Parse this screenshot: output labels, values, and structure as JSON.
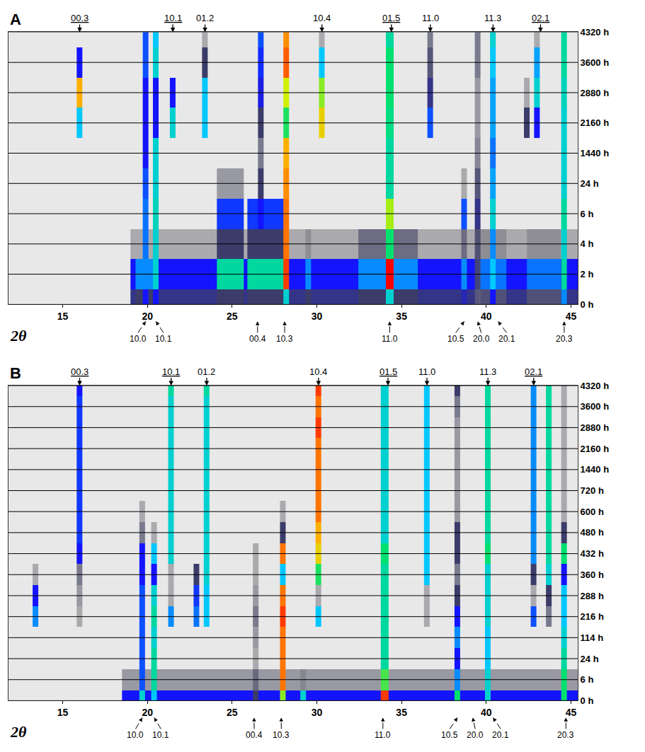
{
  "chart_data": [
    {
      "type": "heatmap",
      "title": "A",
      "x_label": "2θ",
      "xlim": [
        11.8,
        45.4
      ],
      "xticks": [
        15,
        20,
        25,
        30,
        35,
        40,
        45
      ],
      "categories": [
        "0 h",
        "2 h",
        "4 h",
        "6 h",
        "24 h",
        "1440 h",
        "2160 h",
        "2880 h",
        "3600 h",
        "4320 h"
      ],
      "zlim": [
        0,
        1
      ],
      "grid": true,
      "peaks": [
        {
          "x": 32.5,
          "width": 27,
          "intensity": [
            0.22,
            0.3,
            0.1,
            0,
            0,
            0,
            0,
            0,
            0,
            0
          ]
        },
        {
          "x": 19.9,
          "width": 1.2,
          "intensity": [
            0.2,
            0.4,
            0,
            0,
            0,
            0,
            0,
            0,
            0,
            0
          ]
        },
        {
          "x": 24.9,
          "width": 1.6,
          "intensity": [
            0.2,
            0.55,
            0.2,
            0.33,
            0.12,
            0,
            0,
            0,
            0,
            0
          ]
        },
        {
          "x": 27.0,
          "width": 2.2,
          "intensity": [
            0.2,
            0.55,
            0.2,
            0.33,
            0,
            0,
            0,
            0,
            0,
            0
          ]
        },
        {
          "x": 34.2,
          "width": 3.5,
          "intensity": [
            0.2,
            0.4,
            0.15,
            0,
            0,
            0,
            0,
            0,
            0,
            0
          ]
        },
        {
          "x": 40.4,
          "width": 1.6,
          "intensity": [
            0.15,
            0.38,
            0.1,
            0,
            0,
            0,
            0,
            0,
            0,
            0
          ]
        },
        {
          "x": 43.4,
          "width": 2.0,
          "intensity": [
            0.15,
            0.38,
            0.1,
            0,
            0,
            0,
            0,
            0,
            0,
            0
          ]
        },
        {
          "x": 16.0,
          "width": 0.35,
          "intensity": [
            0,
            0,
            0,
            0,
            0,
            0,
            0.45,
            0.85,
            0.3,
            0
          ]
        },
        {
          "x": 19.9,
          "width": 0.35,
          "intensity": [
            0.3,
            0.4,
            0.38,
            0.38,
            0.35,
            0.3,
            0.3,
            0.3,
            0.35,
            0.35
          ]
        },
        {
          "x": 20.5,
          "width": 0.35,
          "intensity": [
            0.3,
            0.5,
            0.5,
            0.52,
            0.5,
            0.5,
            0.3,
            0.3,
            0.5,
            0.45
          ]
        },
        {
          "x": 21.5,
          "width": 0.35,
          "intensity": [
            0,
            0,
            0,
            0,
            0,
            0,
            0.5,
            0.3,
            0,
            0
          ]
        },
        {
          "x": 23.4,
          "width": 0.35,
          "intensity": [
            0,
            0,
            0,
            0,
            0,
            0,
            0.45,
            0.45,
            0.2,
            0.1
          ]
        },
        {
          "x": 26.7,
          "width": 0.35,
          "intensity": [
            0,
            0,
            0,
            0.3,
            0.2,
            0.15,
            0.2,
            0.28,
            0.32,
            0.35
          ]
        },
        {
          "x": 28.2,
          "width": 0.35,
          "intensity": [
            0.5,
            0.95,
            0.9,
            0.9,
            0.88,
            0.85,
            0.62,
            0.75,
            0.92,
            0.88
          ]
        },
        {
          "x": 29.5,
          "width": 0.35,
          "intensity": [
            0.2,
            0.4,
            0.1,
            0,
            0,
            0,
            0,
            0,
            0,
            0
          ]
        },
        {
          "x": 30.3,
          "width": 0.35,
          "intensity": [
            0,
            0,
            0,
            0,
            0,
            0,
            0.8,
            0.7,
            0.45,
            0.1
          ]
        },
        {
          "x": 34.3,
          "width": 0.45,
          "intensity": [
            0.5,
            1,
            0.6,
            0.72,
            0.55,
            0.55,
            0.58,
            0.6,
            0.6,
            0.55
          ]
        },
        {
          "x": 36.7,
          "width": 0.35,
          "intensity": [
            0,
            0,
            0,
            0,
            0,
            0,
            0.35,
            0.22,
            0.18,
            0.15
          ]
        },
        {
          "x": 38.7,
          "width": 0.35,
          "intensity": [
            0.25,
            0.4,
            0.15,
            0.35,
            0.1,
            0,
            0,
            0,
            0,
            0
          ]
        },
        {
          "x": 39.5,
          "width": 0.35,
          "intensity": [
            0.12,
            0.18,
            0.18,
            0.22,
            0.18,
            0.14,
            0.12,
            0.12,
            0.15,
            0.15
          ]
        },
        {
          "x": 40.4,
          "width": 0.35,
          "intensity": [
            0.3,
            0.45,
            0.4,
            0.5,
            0.42,
            0.38,
            0.42,
            0.42,
            0.45,
            0.5
          ]
        },
        {
          "x": 42.4,
          "width": 0.35,
          "intensity": [
            0,
            0,
            0,
            0,
            0,
            0,
            0.2,
            0.1,
            0,
            0
          ]
        },
        {
          "x": 43.0,
          "width": 0.35,
          "intensity": [
            0,
            0,
            0,
            0,
            0,
            0,
            0.3,
            0.5,
            0.42,
            0.1
          ]
        },
        {
          "x": 44.6,
          "width": 0.35,
          "intensity": [
            0.4,
            0.55,
            0.5,
            0.55,
            0.5,
            0.5,
            0.5,
            0.52,
            0.55,
            0.55
          ]
        }
      ],
      "top_labels": [
        {
          "text": "00.3",
          "x": 16.0,
          "underline": true
        },
        {
          "text": "10.1",
          "x": 21.5,
          "underline": true
        },
        {
          "text": "01.2",
          "x": 23.4
        },
        {
          "text": "10.4",
          "x": 30.3
        },
        {
          "text": "01.5",
          "x": 34.4,
          "underline": true
        },
        {
          "text": "11.0",
          "x": 36.7
        },
        {
          "text": "11.3",
          "x": 40.4
        },
        {
          "text": "02.1",
          "x": 43.2,
          "underline": true
        }
      ],
      "bottom_labels": [
        {
          "text": "10.0",
          "x": 19.9
        },
        {
          "text": "10.1",
          "x": 20.5
        },
        {
          "text": "00.4",
          "x": 26.5
        },
        {
          "text": "10.3",
          "x": 28.1
        },
        {
          "text": "11.0",
          "x": 34.3
        },
        {
          "text": "10.5",
          "x": 38.7
        },
        {
          "text": "20.0",
          "x": 39.5
        },
        {
          "text": "20.1",
          "x": 40.7
        },
        {
          "text": "20.3",
          "x": 44.6
        }
      ]
    },
    {
      "type": "heatmap",
      "title": "B",
      "x_label": "2θ",
      "xlim": [
        11.8,
        45.4
      ],
      "xticks": [
        15,
        20,
        25,
        30,
        35,
        40,
        45
      ],
      "categories": [
        "0 h",
        "6 h",
        "24 h",
        "114 h",
        "216 h",
        "288 h",
        "360 h",
        "432 h",
        "480 h",
        "600 h",
        "720 h",
        "1440 h",
        "2160 h",
        "2880 h",
        "3600 h",
        "4320 h"
      ],
      "zlim": [
        0,
        1
      ],
      "grid": true,
      "peaks": [
        {
          "x": 32.5,
          "width": 28,
          "intensity": [
            0.3,
            0.12,
            0,
            0,
            0,
            0,
            0,
            0,
            0,
            0,
            0,
            0,
            0,
            0,
            0,
            0
          ]
        },
        {
          "x": 19.7,
          "width": 0.35,
          "intensity": [
            0.5,
            0.35,
            0.35,
            0.35,
            0.35,
            0.35,
            0.3,
            0.3,
            0.15,
            0.1,
            0,
            0,
            0,
            0,
            0,
            0
          ]
        },
        {
          "x": 13.4,
          "width": 0.35,
          "intensity": [
            0,
            0,
            0,
            0,
            0.4,
            0.3,
            0.1,
            0,
            0,
            0,
            0,
            0,
            0,
            0,
            0,
            0
          ]
        },
        {
          "x": 16.0,
          "width": 0.35,
          "intensity": [
            0,
            0,
            0,
            0,
            0.1,
            0.12,
            0.15,
            0.3,
            0.33,
            0.33,
            0.33,
            0.33,
            0.33,
            0.33,
            0.33,
            0.3
          ]
        },
        {
          "x": 20.4,
          "width": 0.35,
          "intensity": [
            0.45,
            0.55,
            0.55,
            0.5,
            0.55,
            0.5,
            0.3,
            0.45,
            0.1,
            0,
            0,
            0,
            0,
            0,
            0,
            0
          ]
        },
        {
          "x": 21.4,
          "width": 0.35,
          "intensity": [
            0,
            0,
            0,
            0,
            0.4,
            0.1,
            0.1,
            0.5,
            0.5,
            0.5,
            0.5,
            0.5,
            0.5,
            0.5,
            0.5,
            0.55
          ]
        },
        {
          "x": 22.9,
          "width": 0.35,
          "intensity": [
            0,
            0,
            0,
            0,
            0.38,
            0.33,
            0.2,
            0,
            0,
            0,
            0,
            0,
            0,
            0,
            0,
            0
          ]
        },
        {
          "x": 23.5,
          "width": 0.35,
          "intensity": [
            0,
            0,
            0,
            0,
            0.45,
            0.45,
            0.5,
            0.5,
            0.5,
            0.5,
            0.5,
            0.5,
            0.5,
            0.5,
            0.5,
            0.55
          ]
        },
        {
          "x": 26.4,
          "width": 0.35,
          "intensity": [
            0.2,
            0.15,
            0.1,
            0.12,
            0.15,
            0.12,
            0.1,
            0.1,
            0,
            0,
            0,
            0,
            0,
            0,
            0,
            0
          ]
        },
        {
          "x": 28.0,
          "width": 0.35,
          "intensity": [
            0.7,
            0.9,
            0.9,
            0.9,
            0.95,
            0.9,
            0.45,
            0.9,
            0.2,
            0.1,
            0,
            0,
            0,
            0,
            0,
            0
          ]
        },
        {
          "x": 29.2,
          "width": 0.35,
          "intensity": [
            0.5,
            0.1,
            0,
            0,
            0,
            0,
            0,
            0,
            0,
            0,
            0,
            0,
            0,
            0,
            0,
            0
          ]
        },
        {
          "x": 30.1,
          "width": 0.35,
          "intensity": [
            0,
            0,
            0,
            0,
            0.45,
            0.1,
            0.62,
            0.8,
            0.85,
            0.9,
            0.9,
            0.9,
            0.9,
            0.95,
            0.9,
            0.95
          ]
        },
        {
          "x": 34.0,
          "width": 0.45,
          "intensity": [
            0.95,
            0.65,
            0.55,
            0.55,
            0.55,
            0.55,
            0.55,
            0.6,
            0.5,
            0.5,
            0.5,
            0.5,
            0.5,
            0.5,
            0.5,
            0.5
          ]
        },
        {
          "x": 36.5,
          "width": 0.35,
          "intensity": [
            0,
            0,
            0,
            0,
            0.1,
            0.1,
            0.45,
            0.45,
            0.45,
            0.45,
            0.45,
            0.45,
            0.45,
            0.45,
            0.45,
            0.45
          ]
        },
        {
          "x": 38.3,
          "width": 0.35,
          "intensity": [
            0.6,
            0.4,
            0.3,
            0.4,
            0.3,
            0.2,
            0.15,
            0.2,
            0.2,
            0.12,
            0.12,
            0.12,
            0.12,
            0.12,
            0.15,
            0.2
          ]
        },
        {
          "x": 40.1,
          "width": 0.35,
          "intensity": [
            0.5,
            0.5,
            0.45,
            0.45,
            0.5,
            0.5,
            0.5,
            0.6,
            0.55,
            0.55,
            0.55,
            0.55,
            0.55,
            0.55,
            0.55,
            0.55
          ]
        },
        {
          "x": 42.8,
          "width": 0.35,
          "intensity": [
            0,
            0,
            0,
            0,
            0.35,
            0.1,
            0.2,
            0.4,
            0.4,
            0.4,
            0.4,
            0.4,
            0.4,
            0.4,
            0.4,
            0.4
          ]
        },
        {
          "x": 43.7,
          "width": 0.35,
          "intensity": [
            0,
            0,
            0,
            0,
            0.15,
            0.2,
            0.5,
            0.55,
            0.55,
            0.55,
            0.55,
            0.55,
            0.55,
            0.55,
            0.55,
            0.55
          ]
        },
        {
          "x": 44.6,
          "width": 0.35,
          "intensity": [
            0.6,
            0.6,
            0.55,
            0.5,
            0.45,
            0.45,
            0.3,
            0.6,
            0.2,
            0.1,
            0.1,
            0.1,
            0.1,
            0.1,
            0.1,
            0.1
          ]
        }
      ],
      "top_labels": [
        {
          "text": "00.3",
          "x": 16.0,
          "underline": true
        },
        {
          "text": "10.1",
          "x": 21.4,
          "underline": true
        },
        {
          "text": "01.2",
          "x": 23.5
        },
        {
          "text": "10.4",
          "x": 30.1
        },
        {
          "text": "01.5",
          "x": 34.2,
          "underline": true
        },
        {
          "text": "11.0",
          "x": 36.5
        },
        {
          "text": "11.3",
          "x": 40.1
        },
        {
          "text": "02.1",
          "x": 42.8,
          "underline": true
        }
      ],
      "bottom_labels": [
        {
          "text": "10.0",
          "x": 19.7
        },
        {
          "text": "10.1",
          "x": 20.4
        },
        {
          "text": "00.4",
          "x": 26.3
        },
        {
          "text": "10.3",
          "x": 27.9
        },
        {
          "text": "11.0",
          "x": 33.9
        },
        {
          "text": "10.5",
          "x": 38.3
        },
        {
          "text": "20.0",
          "x": 39.2
        },
        {
          "text": "20.1",
          "x": 40.4
        },
        {
          "text": "20.3",
          "x": 44.7
        }
      ]
    }
  ]
}
